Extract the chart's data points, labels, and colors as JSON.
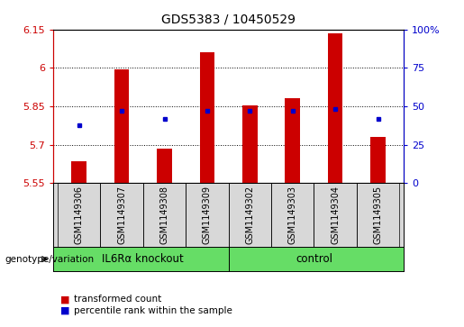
{
  "title": "GDS5383 / 10450529",
  "samples": [
    "GSM1149306",
    "GSM1149307",
    "GSM1149308",
    "GSM1149309",
    "GSM1149302",
    "GSM1149303",
    "GSM1149304",
    "GSM1149305"
  ],
  "group_labels": [
    "IL6Rα knockout",
    "control"
  ],
  "bar_bottom": 5.55,
  "bar_tops": [
    5.635,
    5.995,
    5.685,
    6.06,
    5.855,
    5.882,
    6.135,
    5.73
  ],
  "blue_dots": [
    5.775,
    5.832,
    5.8,
    5.832,
    5.832,
    5.832,
    5.84,
    5.8
  ],
  "ylim": [
    5.55,
    6.15
  ],
  "yticks": [
    5.55,
    5.7,
    5.85,
    6.0,
    6.15
  ],
  "ytick_labels": [
    "5.55",
    "5.7",
    "5.85",
    "6",
    "6.15"
  ],
  "right_yticks": [
    0,
    25,
    50,
    75,
    100
  ],
  "right_ytick_labels": [
    "0",
    "25",
    "50",
    "75",
    "100%"
  ],
  "bar_color": "#CC0000",
  "dot_color": "#0000CC",
  "sample_bg_color": "#D8D8D8",
  "group_bg_color": "#66DD66",
  "plot_bg": "#FFFFFF",
  "left_label_color": "#CC0000",
  "right_label_color": "#0000CC",
  "bar_width": 0.35,
  "grid_ticks": [
    5.7,
    5.85,
    6.0
  ]
}
